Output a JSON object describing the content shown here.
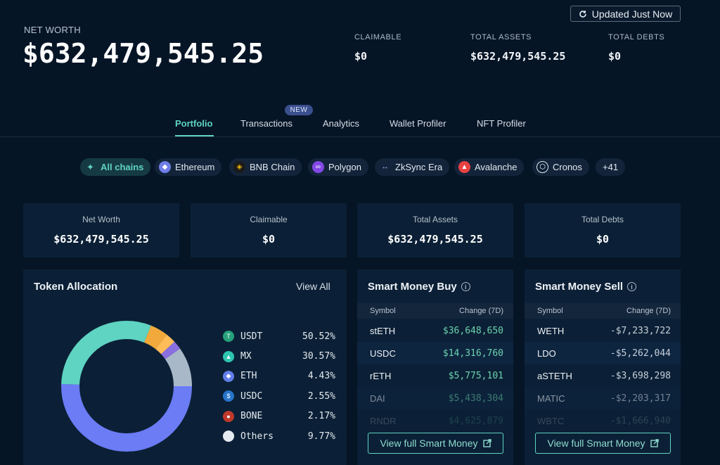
{
  "header": {
    "update_label": "Updated Just Now",
    "net_worth_label": "NET WORTH",
    "net_worth_value": "$632,479,545.25",
    "stats": [
      {
        "label": "CLAIMABLE",
        "value": "$0"
      },
      {
        "label": "TOTAL ASSETS",
        "value": "$632,479,545.25"
      },
      {
        "label": "TOTAL DEBTS",
        "value": "$0"
      }
    ]
  },
  "tabs": [
    {
      "label": "Portfolio",
      "active": true
    },
    {
      "label": "Transactions",
      "badge": "NEW"
    },
    {
      "label": "Analytics"
    },
    {
      "label": "Wallet Profiler"
    },
    {
      "label": "NFT Profiler"
    }
  ],
  "chains": [
    {
      "label": "All chains",
      "icon": "sparkle-icon",
      "color": "#5fd4c2"
    },
    {
      "label": "Ethereum",
      "icon": "ethereum-icon",
      "color": "#6f7ee8"
    },
    {
      "label": "BNB Chain",
      "icon": "bnb-icon",
      "color": "#f0b90b"
    },
    {
      "label": "Polygon",
      "icon": "polygon-icon",
      "color": "#8247e5"
    },
    {
      "label": "ZkSync Era",
      "icon": "zksync-icon",
      "color": "#4e5ae0"
    },
    {
      "label": "Avalanche",
      "icon": "avalanche-icon",
      "color": "#e84142"
    },
    {
      "label": "Cronos",
      "icon": "cronos-icon",
      "color": "#0b2036"
    },
    {
      "label": "+41"
    }
  ],
  "summary": [
    {
      "label": "Net Worth",
      "value": "$632,479,545.25"
    },
    {
      "label": "Claimable",
      "value": "$0"
    },
    {
      "label": "Total Assets",
      "value": "$632,479,545.25"
    },
    {
      "label": "Total Debts",
      "value": "$0"
    }
  ],
  "allocation": {
    "title": "Token Allocation",
    "view_all": "View All",
    "items": [
      {
        "symbol": "USDT",
        "percent": "50.52%",
        "value": 50.52,
        "color": "#6b7cf5",
        "icon": "tether-icon",
        "icon_bg": "#26a17b"
      },
      {
        "symbol": "MX",
        "percent": "30.57%",
        "value": 30.57,
        "color": "#5fd4c2",
        "icon": "mx-icon",
        "icon_bg": "#2ec5b0"
      },
      {
        "symbol": "ETH",
        "percent": "4.43%",
        "value": 4.43,
        "color": "#f2a93b",
        "icon": "ethereum-icon",
        "icon_bg": "#627eea"
      },
      {
        "symbol": "USDC",
        "percent": "2.55%",
        "value": 2.55,
        "color": "#ffbd59",
        "icon": "usdc-icon",
        "icon_bg": "#2775ca"
      },
      {
        "symbol": "BONE",
        "percent": "2.17%",
        "value": 2.17,
        "color": "#8a6fe0",
        "icon": "bone-icon",
        "icon_bg": "#c0392b"
      },
      {
        "symbol": "Others",
        "percent": "9.77%",
        "value": 9.77,
        "color": "#a9b8c8",
        "icon": "others-icon",
        "icon_bg": "#e6ebf0"
      }
    ]
  },
  "smart_buy": {
    "title": "Smart Money Buy",
    "col_symbol": "Symbol",
    "col_change": "Change (7D)",
    "rows": [
      {
        "symbol": "stETH",
        "change": "$36,648,650"
      },
      {
        "symbol": "USDC",
        "change": "$14,316,760"
      },
      {
        "symbol": "rETH",
        "change": "$5,775,101"
      },
      {
        "symbol": "DAI",
        "change": "$5,438,304"
      },
      {
        "symbol": "RNDR",
        "change": "$4,625,879"
      }
    ],
    "button": "View full Smart Money"
  },
  "smart_sell": {
    "title": "Smart Money Sell",
    "col_symbol": "Symbol",
    "col_change": "Change (7D)",
    "rows": [
      {
        "symbol": "WETH",
        "change": "-$7,233,722"
      },
      {
        "symbol": "LDO",
        "change": "-$5,262,044"
      },
      {
        "symbol": "aSTETH",
        "change": "-$3,698,298"
      },
      {
        "symbol": "MATIC",
        "change": "-$2,203,317"
      },
      {
        "symbol": "WBTC",
        "change": "-$1,666,940"
      }
    ],
    "button": "View full Smart Money"
  }
}
